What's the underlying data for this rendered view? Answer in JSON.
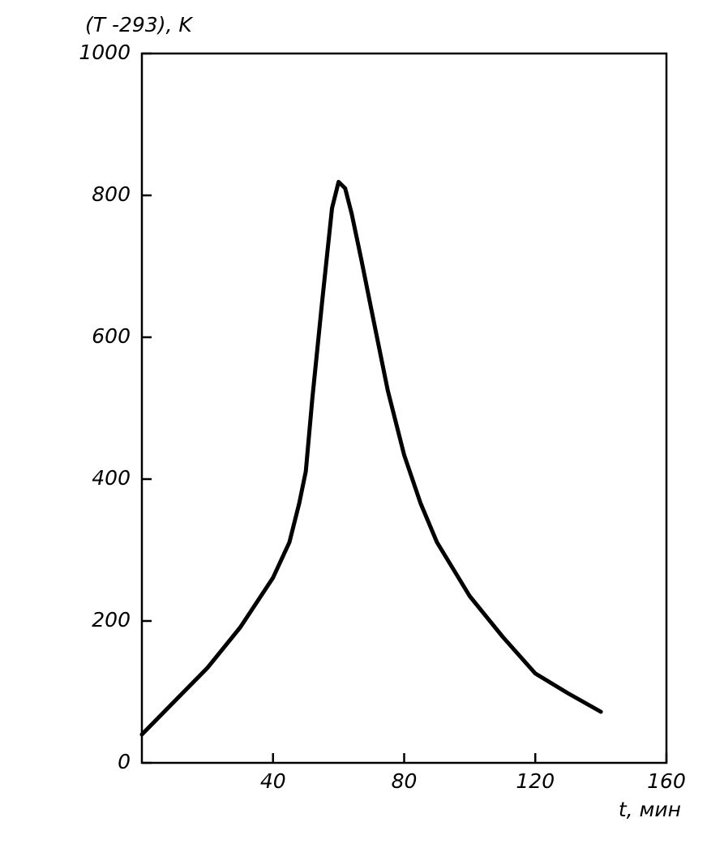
{
  "chart_data": {
    "type": "line",
    "y_label": "(T -293), K",
    "x_label": "t, мин",
    "x": [
      0,
      10,
      20,
      30,
      40,
      45,
      48,
      50,
      52,
      55,
      58,
      60,
      62,
      64,
      67,
      70,
      75,
      80,
      85,
      90,
      100,
      110,
      120,
      130,
      140
    ],
    "series": [
      {
        "color": "#000000",
        "values": [
          40,
          87,
          134,
          191,
          261,
          311,
          366,
          411,
          514,
          651,
          782,
          819,
          810,
          774,
          708,
          639,
          525,
          434,
          366,
          311,
          235,
          178,
          126,
          98,
          72
        ]
      }
    ],
    "xlim": [
      0,
      160
    ],
    "xticks": [
      40,
      80,
      120,
      160
    ],
    "ylim": [
      0,
      1000
    ],
    "yticks": [
      0,
      200,
      400,
      600,
      800,
      1000
    ],
    "grid": false
  }
}
